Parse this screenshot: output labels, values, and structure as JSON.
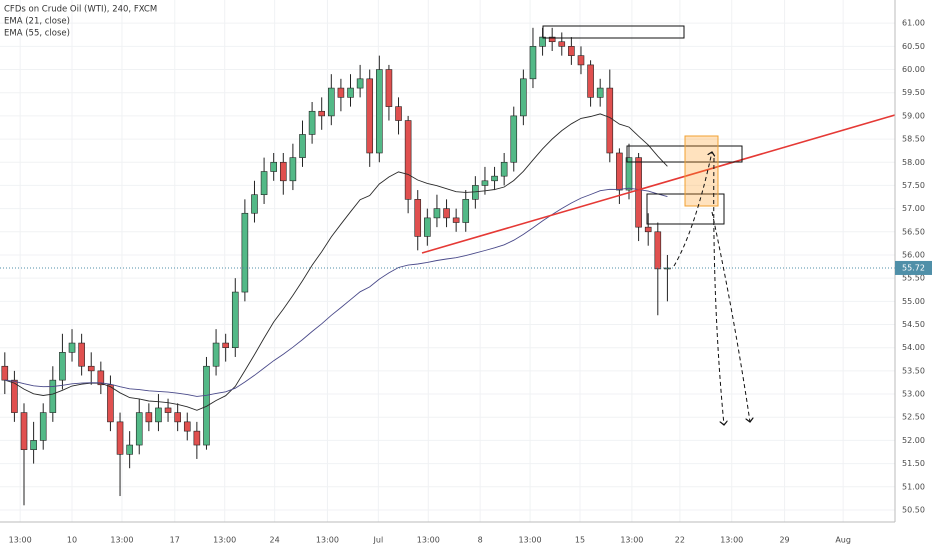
{
  "chart_data": {
    "type": "candlestick",
    "title": "CFDs on Crude Oil (WTI), 240, FXCM",
    "indicators": [
      {
        "label": "EMA (21, close)",
        "period": 21,
        "color": "#2b2b2b"
      },
      {
        "label": "EMA (55, close)",
        "period": 55,
        "color": "#4a4a8a"
      }
    ],
    "up_color": "#53b987",
    "down_color": "#e0504f",
    "wick_color": "#222",
    "open": [
      53.6,
      53.3,
      52.6,
      51.8,
      52.0,
      52.6,
      53.3,
      53.9,
      54.1,
      53.6,
      53.5,
      53.2,
      52.4,
      51.7,
      51.9,
      52.6,
      52.4,
      52.7,
      52.6,
      52.4,
      52.2,
      51.9,
      53.6,
      54.1,
      54.0,
      55.2,
      56.9,
      57.3,
      57.8,
      58.0,
      57.6,
      58.1,
      58.6,
      59.1,
      59.0,
      59.6,
      59.4,
      59.6,
      59.8,
      58.2,
      60.0,
      59.2,
      58.9,
      57.2,
      56.4,
      56.8,
      57.0,
      56.8,
      56.7,
      57.2,
      57.5,
      57.6,
      57.7,
      58.0,
      59.0,
      59.8,
      60.5,
      60.7,
      60.6,
      60.5,
      60.3,
      60.1,
      59.4,
      59.6,
      58.2,
      57.4,
      58.1,
      56.6,
      56.5,
      55.7
    ],
    "high": [
      53.9,
      53.5,
      52.8,
      52.4,
      52.8,
      53.6,
      54.3,
      54.4,
      54.3,
      53.9,
      53.7,
      53.4,
      52.6,
      52.2,
      52.9,
      52.8,
      53.0,
      52.9,
      52.8,
      52.6,
      52.4,
      53.8,
      54.4,
      54.3,
      55.5,
      57.2,
      57.6,
      58.1,
      58.2,
      58.2,
      58.4,
      58.9,
      59.3,
      59.4,
      59.9,
      59.8,
      59.9,
      60.1,
      60.0,
      60.3,
      60.1,
      59.4,
      59.0,
      57.4,
      57.0,
      57.3,
      57.2,
      57.0,
      57.4,
      57.7,
      57.9,
      57.9,
      58.2,
      59.2,
      60.0,
      60.9,
      60.9,
      60.9,
      60.8,
      60.7,
      60.5,
      60.2,
      59.8,
      60.0,
      58.3,
      58.4,
      58.2,
      56.9,
      56.7,
      56.0
    ],
    "low": [
      53.0,
      52.4,
      50.6,
      51.5,
      51.8,
      52.4,
      53.1,
      53.7,
      53.4,
      53.2,
      53.0,
      52.2,
      50.8,
      51.4,
      51.7,
      52.2,
      52.2,
      52.4,
      52.2,
      52.0,
      51.6,
      51.8,
      53.4,
      53.7,
      53.8,
      55.0,
      56.7,
      57.1,
      57.6,
      57.3,
      57.4,
      57.9,
      58.4,
      58.7,
      58.8,
      59.1,
      59.2,
      59.4,
      57.9,
      58.0,
      58.9,
      58.6,
      56.9,
      56.1,
      56.2,
      56.6,
      56.6,
      56.5,
      56.5,
      57.0,
      57.3,
      57.4,
      57.5,
      57.8,
      58.8,
      59.6,
      60.3,
      60.4,
      60.3,
      60.1,
      59.9,
      59.2,
      59.2,
      58.0,
      57.1,
      57.2,
      56.3,
      56.2,
      54.7,
      55.0
    ],
    "close": [
      53.3,
      52.6,
      51.8,
      52.0,
      52.6,
      53.3,
      53.9,
      54.1,
      53.6,
      53.5,
      53.2,
      52.4,
      51.7,
      51.9,
      52.6,
      52.4,
      52.7,
      52.6,
      52.4,
      52.2,
      51.9,
      53.6,
      54.1,
      54.0,
      55.2,
      56.9,
      57.3,
      57.8,
      58.0,
      57.6,
      58.1,
      58.6,
      59.1,
      59.0,
      59.6,
      59.4,
      59.6,
      59.8,
      58.2,
      60.0,
      59.2,
      58.9,
      57.2,
      56.4,
      56.8,
      57.0,
      56.8,
      56.7,
      57.2,
      57.5,
      57.6,
      57.7,
      58.0,
      59.0,
      59.8,
      60.5,
      60.7,
      60.6,
      60.5,
      60.3,
      60.1,
      59.4,
      59.6,
      58.2,
      57.4,
      58.1,
      56.6,
      56.5,
      55.7,
      55.72
    ],
    "last_price": {
      "value": 55.72,
      "label": "55.72",
      "color": "#4f8fa8"
    },
    "xlim": [
      -0.5,
      92.7
    ],
    "xticks": [
      {
        "value": 1.6,
        "label": "13:00"
      },
      {
        "value": 7,
        "label": "10"
      },
      {
        "value": 12.2,
        "label": "13:00"
      },
      {
        "value": 17.7,
        "label": "17"
      },
      {
        "value": 22.9,
        "label": "13:00"
      },
      {
        "value": 28.1,
        "label": "24"
      },
      {
        "value": 33.6,
        "label": "13:00"
      },
      {
        "value": 38.9,
        "label": "Jul"
      },
      {
        "value": 44.1,
        "label": "13:00"
      },
      {
        "value": 49.5,
        "label": "8"
      },
      {
        "value": 54.7,
        "label": "13:00"
      },
      {
        "value": 59.9,
        "label": "15"
      },
      {
        "value": 65.3,
        "label": "13:00"
      },
      {
        "value": 70.3,
        "label": "22"
      },
      {
        "value": 75.7,
        "label": "13:00"
      },
      {
        "value": 81.2,
        "label": "29"
      },
      {
        "value": 87.3,
        "label": "Aug"
      }
    ],
    "ylim": [
      50.24,
      61.5
    ],
    "yticks": [
      {
        "value": 50.5,
        "label": "50.50"
      },
      {
        "value": 51,
        "label": "51.00"
      },
      {
        "value": 51.5,
        "label": "51.50"
      },
      {
        "value": 52,
        "label": "52.00"
      },
      {
        "value": 52.5,
        "label": "52.50"
      },
      {
        "value": 53,
        "label": "53.00"
      },
      {
        "value": 53.5,
        "label": "53.50"
      },
      {
        "value": 54,
        "label": "54.00"
      },
      {
        "value": 54.5,
        "label": "54.50"
      },
      {
        "value": 55,
        "label": "55.00"
      },
      {
        "value": 55.5,
        "label": "55.50"
      },
      {
        "value": 56,
        "label": "56.00"
      },
      {
        "value": 56.5,
        "label": "56.50"
      },
      {
        "value": 57,
        "label": "57.00"
      },
      {
        "value": 57.5,
        "label": "57.50"
      },
      {
        "value": 58,
        "label": "58.00"
      },
      {
        "value": 58.5,
        "label": "58.50"
      },
      {
        "value": 59,
        "label": "59.00"
      },
      {
        "value": 59.5,
        "label": "59.50"
      },
      {
        "value": 60,
        "label": "60.00"
      },
      {
        "value": 60.5,
        "label": "60.50"
      },
      {
        "value": 61,
        "label": "61.00"
      }
    ]
  }
}
